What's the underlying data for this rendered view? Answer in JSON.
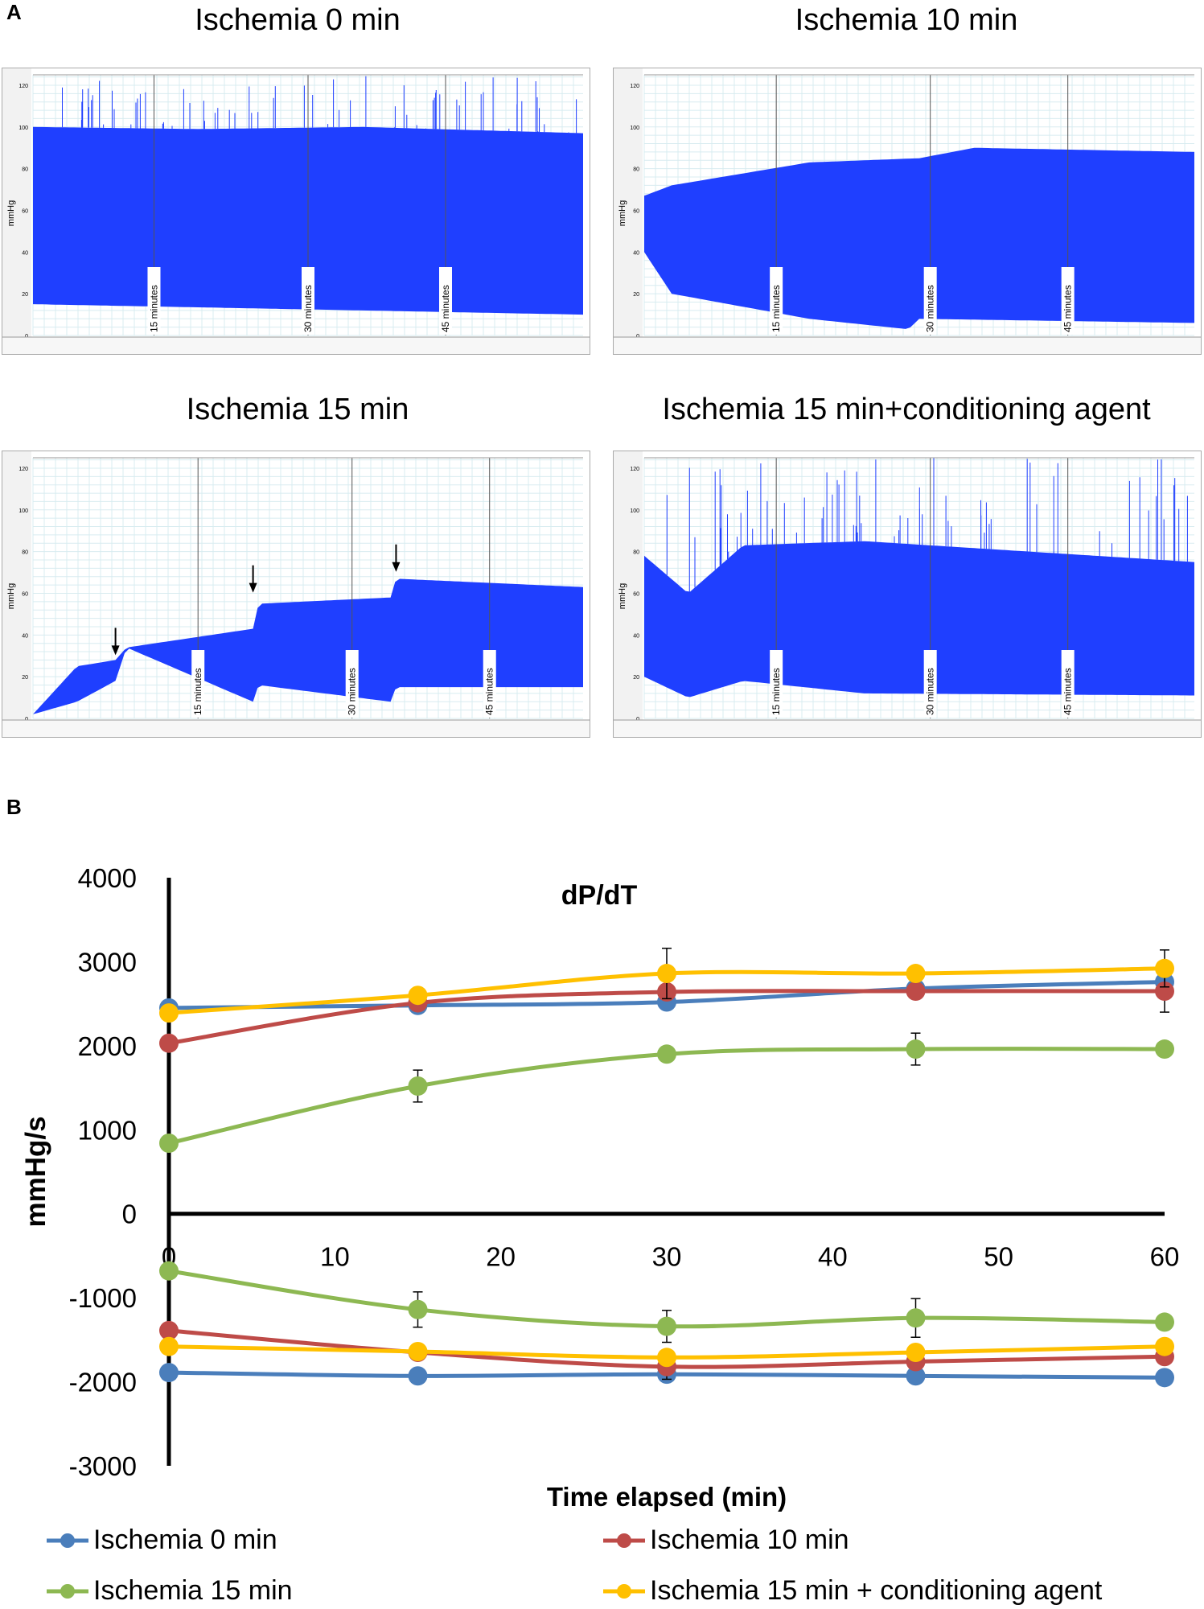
{
  "panel_a": {
    "letter": "A",
    "y_unit": "mmHg",
    "y_ticks": [
      "120",
      "100",
      "80",
      "60",
      "40",
      "20",
      "0"
    ],
    "traces": [
      {
        "title": "Ischemia 0 min",
        "markers": [
          "15 minutes",
          "30 minutes",
          "45 minutes"
        ],
        "color": "#1f3fff"
      },
      {
        "title": "Ischemia 10 min",
        "markers": [
          "15 minutes",
          "30 minutes",
          "45 minutes"
        ],
        "color": "#1f3fff"
      },
      {
        "title": "Ischemia 15 min",
        "markers": [
          "15 minutes",
          "30 minutes",
          "45 minutes"
        ],
        "color": "#1f3fff"
      },
      {
        "title": "Ischemia 15 min+conditioning agent",
        "markers": [
          "15 minutes",
          "30 minutes",
          "45 minutes"
        ],
        "color": "#1f3fff"
      }
    ]
  },
  "panel_b": {
    "letter": "B"
  },
  "chart_data": {
    "type": "line",
    "title": "dP/dT",
    "xlabel": "Time elapsed (min)",
    "ylabel": "mmHg/s",
    "xlim": [
      0,
      60
    ],
    "ylim": [
      -3000,
      4000
    ],
    "x_ticks": [
      0,
      10,
      20,
      30,
      40,
      50,
      60
    ],
    "y_ticks": [
      4000,
      3000,
      2000,
      1000,
      0,
      -1000,
      -2000,
      -3000
    ],
    "x": [
      0,
      15,
      30,
      45,
      60
    ],
    "series": [
      {
        "name": "Ischemia 0 min",
        "color": "#4a7ebb",
        "positive": [
          2450,
          2480,
          2520,
          2680,
          2760
        ],
        "negative": [
          -1890,
          -1930,
          -1910,
          -1930,
          -1950
        ],
        "pos_err": [
          0,
          60,
          70,
          0,
          0
        ],
        "neg_err": [
          0,
          0,
          0,
          0,
          0
        ]
      },
      {
        "name": "Ischemia 10 min",
        "color": "#be4b48",
        "positive": [
          2030,
          2510,
          2640,
          2650,
          2650
        ],
        "negative": [
          -1390,
          -1650,
          -1820,
          -1760,
          -1700
        ],
        "pos_err": [
          0,
          0,
          0,
          0,
          250
        ],
        "neg_err": [
          0,
          0,
          150,
          0,
          0
        ]
      },
      {
        "name": "Ischemia 15 min",
        "color": "#8db852",
        "positive": [
          840,
          1520,
          1900,
          1960,
          1960
        ],
        "negative": [
          -680,
          -1140,
          -1340,
          -1240,
          -1290
        ],
        "pos_err": [
          0,
          190,
          0,
          190,
          0
        ],
        "neg_err": [
          0,
          210,
          190,
          230,
          0
        ]
      },
      {
        "name": "Ischemia 15 min + conditioning agent",
        "color": "#ffc000",
        "positive": [
          2390,
          2600,
          2860,
          2860,
          2920
        ],
        "negative": [
          -1580,
          -1640,
          -1710,
          -1650,
          -1580
        ],
        "pos_err": [
          0,
          0,
          300,
          0,
          220
        ],
        "neg_err": [
          0,
          0,
          0,
          0,
          0
        ]
      }
    ]
  }
}
